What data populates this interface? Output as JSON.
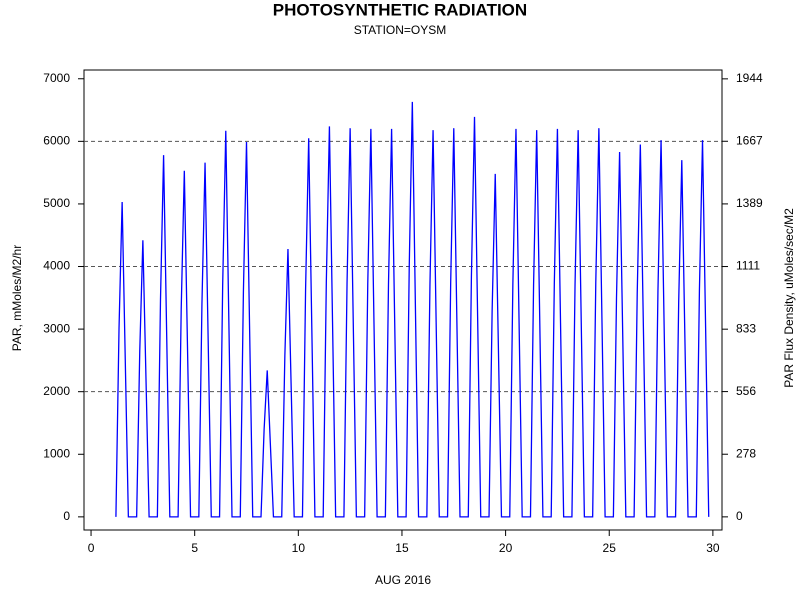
{
  "chart_data": {
    "type": "line",
    "title": "PHOTOSYNTHETIC RADIATION",
    "subtitle": "STATION=OYSM",
    "xlabel": "AUG 2016",
    "ylabel": "PAR, mMoles/M2/hr",
    "y2label": "PAR Flux Density, uMoles/sec/M2",
    "color": "#0000ff",
    "xlim": [
      -0.34,
      30.44
    ],
    "xticks": [
      0,
      5,
      10,
      15,
      20,
      25,
      30
    ],
    "ylim": [
      -210,
      7140
    ],
    "yticks": [
      0,
      1000,
      2000,
      3000,
      4000,
      5000,
      6000,
      7000
    ],
    "y2lim": [
      -58.3,
      1983.3
    ],
    "y2ticks": [
      0,
      278,
      556,
      833,
      1111,
      1389,
      1667,
      1944
    ],
    "reflines": [
      2000,
      4000,
      6000
    ],
    "x": [
      1.2,
      1.35,
      1.5,
      1.65,
      1.8,
      2.2,
      2.35,
      2.5,
      2.65,
      2.8,
      3.2,
      3.35,
      3.5,
      3.65,
      3.8,
      4.2,
      4.35,
      4.5,
      4.65,
      4.8,
      5.2,
      5.35,
      5.5,
      5.65,
      5.8,
      6.2,
      6.35,
      6.5,
      6.65,
      6.8,
      7.2,
      7.35,
      7.5,
      7.65,
      7.8,
      8.2,
      8.35,
      8.5,
      8.65,
      8.8,
      9.2,
      9.35,
      9.5,
      9.65,
      9.8,
      10.2,
      10.35,
      10.5,
      10.65,
      10.8,
      11.2,
      11.35,
      11.5,
      11.65,
      11.8,
      12.2,
      12.35,
      12.5,
      12.65,
      12.8,
      13.2,
      13.35,
      13.5,
      13.65,
      13.8,
      14.2,
      14.35,
      14.5,
      14.65,
      14.8,
      15.2,
      15.35,
      15.5,
      15.65,
      15.8,
      16.2,
      16.35,
      16.5,
      16.65,
      16.8,
      17.2,
      17.35,
      17.5,
      17.65,
      17.8,
      18.2,
      18.35,
      18.5,
      18.65,
      18.8,
      19.2,
      19.35,
      19.5,
      19.65,
      19.8,
      20.2,
      20.35,
      20.5,
      20.65,
      20.8,
      21.2,
      21.35,
      21.5,
      21.65,
      21.8,
      22.2,
      22.35,
      22.5,
      22.65,
      22.8,
      23.2,
      23.35,
      23.5,
      23.65,
      23.8,
      24.2,
      24.35,
      24.5,
      24.65,
      24.8,
      25.2,
      25.35,
      25.5,
      25.65,
      25.8,
      26.2,
      26.35,
      26.5,
      26.65,
      26.8,
      27.2,
      27.35,
      27.5,
      27.65,
      27.8,
      28.2,
      28.35,
      28.5,
      28.65,
      28.8,
      29.2,
      29.35,
      29.5,
      29.65,
      29.8
    ],
    "values": [
      0,
      3020,
      5030,
      2520,
      0,
      0,
      2650,
      4420,
      2210,
      0,
      0,
      3470,
      5780,
      2890,
      0,
      0,
      3320,
      5530,
      2770,
      0,
      0,
      3400,
      5660,
      2830,
      0,
      0,
      3700,
      6170,
      3090,
      0,
      0,
      3590,
      5990,
      3000,
      0,
      0,
      1400,
      2340,
      1170,
      0,
      0,
      2570,
      4280,
      2140,
      0,
      0,
      3630,
      6050,
      3030,
      0,
      0,
      3740,
      6240,
      3120,
      0,
      0,
      3730,
      6210,
      3110,
      0,
      0,
      3720,
      6200,
      3100,
      0,
      0,
      3720,
      6200,
      3100,
      0,
      0,
      3980,
      6630,
      3320,
      0,
      0,
      3710,
      6180,
      3090,
      0,
      0,
      3730,
      6210,
      3110,
      0,
      0,
      3830,
      6390,
      3200,
      0,
      0,
      3290,
      5480,
      2740,
      0,
      0,
      3720,
      6200,
      3100,
      0,
      0,
      3710,
      6180,
      3090,
      0,
      0,
      3720,
      6200,
      3100,
      0,
      0,
      3710,
      6180,
      3090,
      0,
      0,
      3730,
      6210,
      3110,
      0,
      0,
      3500,
      5830,
      2920,
      0,
      0,
      3570,
      5950,
      2980,
      0,
      0,
      3610,
      6020,
      3010,
      0,
      0,
      3420,
      5700,
      2850,
      0,
      0,
      3610,
      6020,
      3010,
      0
    ]
  }
}
